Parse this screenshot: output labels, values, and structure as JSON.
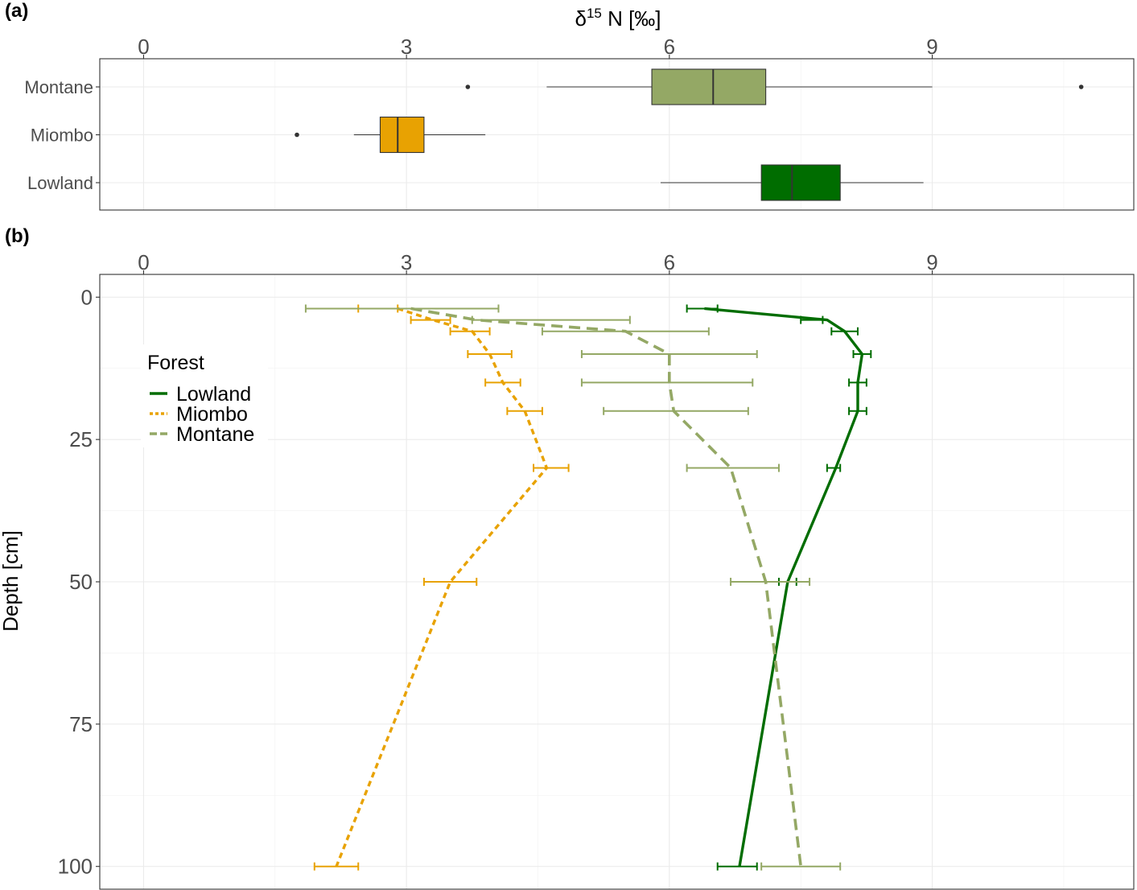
{
  "panel_a_label": "(a)",
  "panel_b_label": "(b)",
  "chart_data": [
    {
      "type": "box",
      "panel": "(a)",
      "xlabel": "δ15 N [‰]",
      "xlabel_parts": {
        "delta": "δ",
        "superscript": "15",
        "rest": " N [‰]"
      },
      "xlim": [
        -0.5,
        11.3
      ],
      "xticks": [
        0,
        3,
        6,
        9
      ],
      "xtick_labels": [
        "0",
        "3",
        "6",
        "9"
      ],
      "categories": [
        "Montane",
        "Miombo",
        "Lowland"
      ],
      "colors": {
        "Montane": "#94a865",
        "Miombo": "#e8a202",
        "Lowland": "#006d00"
      },
      "boxes": [
        {
          "name": "Montane",
          "whisker_low": 4.6,
          "q1": 5.8,
          "median": 6.5,
          "q3": 7.1,
          "whisker_high": 9.0,
          "outliers": [
            3.7,
            10.7
          ]
        },
        {
          "name": "Miombo",
          "whisker_low": 2.4,
          "q1": 2.7,
          "median": 2.9,
          "q3": 3.2,
          "whisker_high": 3.9,
          "outliers": [
            1.75
          ]
        },
        {
          "name": "Lowland",
          "whisker_low": 5.9,
          "q1": 7.05,
          "median": 7.4,
          "q3": 7.95,
          "whisker_high": 8.9,
          "outliers": []
        }
      ]
    },
    {
      "type": "line",
      "panel": "(b)",
      "ylabel": "Depth [cm]",
      "xlim": [
        -0.5,
        11.3
      ],
      "ylim": [
        104,
        -4
      ],
      "xticks": [
        0,
        3,
        6,
        9
      ],
      "xtick_labels": [
        "0",
        "3",
        "6",
        "9"
      ],
      "yticks": [
        0,
        25,
        50,
        75,
        100
      ],
      "ytick_labels": [
        "0",
        "25",
        "50",
        "75",
        "100"
      ],
      "legend": {
        "title": "Forest",
        "position": "upper-left inside"
      },
      "series": [
        {
          "name": "Lowland",
          "color": "#006d00",
          "dash": "solid",
          "depth": [
            2,
            4,
            6,
            10,
            15,
            20,
            30,
            50,
            100
          ],
          "mean": [
            6.4,
            7.8,
            8.0,
            8.2,
            8.15,
            8.15,
            7.9,
            7.35,
            6.8
          ],
          "err_low": [
            6.2,
            7.5,
            7.85,
            8.1,
            8.05,
            8.05,
            7.8,
            7.25,
            6.55
          ],
          "err_high": [
            6.55,
            7.75,
            8.15,
            8.3,
            8.25,
            8.25,
            7.95,
            7.45,
            7.0
          ]
        },
        {
          "name": "Miombo",
          "color": "#e8a202",
          "dash": "dotted",
          "depth": [
            2,
            4,
            6,
            10,
            15,
            20,
            30,
            50,
            100
          ],
          "mean": [
            2.9,
            3.3,
            3.75,
            3.95,
            4.1,
            4.35,
            4.6,
            3.5,
            2.2
          ],
          "err_low": [
            2.45,
            3.05,
            3.5,
            3.7,
            3.9,
            4.15,
            4.45,
            3.2,
            1.95
          ],
          "err_high": [
            2.9,
            3.5,
            3.95,
            4.2,
            4.3,
            4.55,
            4.85,
            3.8,
            2.45
          ]
        },
        {
          "name": "Montane",
          "color": "#94a865",
          "dash": "dashed",
          "depth": [
            2,
            4,
            6,
            10,
            15,
            20,
            30,
            50,
            100
          ],
          "mean": [
            3.05,
            3.8,
            5.5,
            6.0,
            6.0,
            6.05,
            6.7,
            7.1,
            7.5
          ],
          "err_low": [
            1.85,
            3.75,
            4.55,
            5.0,
            5.0,
            5.25,
            6.2,
            6.7,
            7.05
          ],
          "err_high": [
            4.05,
            5.55,
            6.45,
            7.0,
            6.95,
            6.9,
            7.25,
            7.6,
            7.95
          ]
        }
      ]
    }
  ]
}
